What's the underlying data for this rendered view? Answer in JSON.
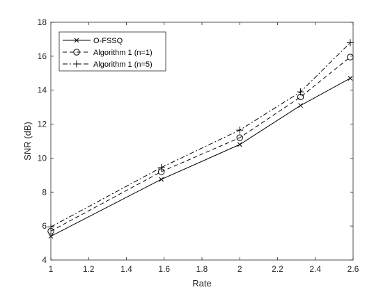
{
  "chart_data": {
    "type": "line",
    "xlabel": "Rate",
    "ylabel": "SNR (dB)",
    "xlim": [
      1,
      2.6
    ],
    "ylim": [
      4,
      18
    ],
    "xticks": [
      "1",
      "1.2",
      "1.4",
      "1.6",
      "1.8",
      "2",
      "2.2",
      "2.4",
      "2.6"
    ],
    "yticks": [
      "4",
      "6",
      "8",
      "10",
      "12",
      "14",
      "16",
      "18"
    ],
    "x": [
      1,
      1.585,
      2,
      2.322,
      2.585
    ],
    "grid": false,
    "legend_position": "top-left",
    "series": [
      {
        "name": "O-FSSQ",
        "values": [
          5.4,
          8.75,
          10.8,
          13.1,
          14.7
        ],
        "line_style": "solid",
        "marker": "x",
        "color": "#000000"
      },
      {
        "name": "Algorithm 1 (n=1)",
        "values": [
          5.7,
          9.2,
          11.2,
          13.6,
          15.95
        ],
        "line_style": "dashed",
        "marker": "o",
        "color": "#000000"
      },
      {
        "name": "Algorithm 1 (n=5)",
        "values": [
          5.95,
          9.45,
          11.65,
          13.9,
          16.8
        ],
        "line_style": "dashdot",
        "marker": "+",
        "color": "#000000"
      }
    ]
  }
}
